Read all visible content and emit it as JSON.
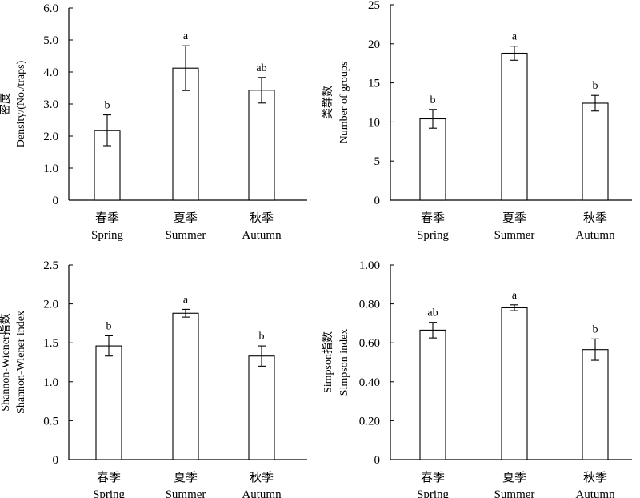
{
  "chart_data": [
    {
      "type": "bar",
      "categories": [
        "春季",
        "夏季",
        "秋季"
      ],
      "categories_en": [
        "Spring",
        "Summer",
        "Autumn"
      ],
      "ylabel_cn": "密度",
      "ylabel_en": "Density/(No./traps)",
      "ylim": [
        0,
        6
      ],
      "yticks": [
        "0",
        "1.0",
        "2.0",
        "3.0",
        "4.0",
        "5.0",
        "6.0"
      ],
      "tick_values": [
        0,
        1,
        2,
        3,
        4,
        5,
        6
      ],
      "values": [
        2.18,
        4.12,
        3.43
      ],
      "errors": [
        0.48,
        0.7,
        0.4
      ],
      "letters": [
        "b",
        "a",
        "ab"
      ]
    },
    {
      "type": "bar",
      "categories": [
        "春季",
        "夏季",
        "秋季"
      ],
      "categories_en": [
        "Spring",
        "Summer",
        "Autumn"
      ],
      "ylabel_cn": "类群数",
      "ylabel_en": "Number of groups",
      "ylim": [
        0,
        25
      ],
      "yticks": [
        "0",
        "5",
        "10",
        "15",
        "20",
        "25"
      ],
      "tick_values": [
        0,
        5,
        10,
        15,
        20,
        25
      ],
      "values": [
        10.4,
        18.8,
        12.4
      ],
      "errors": [
        1.2,
        0.9,
        1.0
      ],
      "letters": [
        "b",
        "a",
        "b"
      ]
    },
    {
      "type": "bar",
      "categories": [
        "春季",
        "夏季",
        "秋季"
      ],
      "categories_en": [
        "Spring",
        "Summer",
        "Autumn"
      ],
      "ylabel_cn": "Shannon-Wiener指数",
      "ylabel_en": "Shannon-Wiener index",
      "ylim": [
        0,
        2.5
      ],
      "yticks": [
        "0",
        "0.5",
        "1.0",
        "1.5",
        "2.0",
        "2.5"
      ],
      "tick_values": [
        0,
        0.5,
        1,
        1.5,
        2,
        2.5
      ],
      "values": [
        1.46,
        1.88,
        1.33
      ],
      "errors": [
        0.13,
        0.05,
        0.13
      ],
      "letters": [
        "b",
        "a",
        "b"
      ]
    },
    {
      "type": "bar",
      "categories": [
        "春季",
        "夏季",
        "秋季"
      ],
      "categories_en": [
        "Spring",
        "Summer",
        "Autumn"
      ],
      "ylabel_cn": "Simpson指数",
      "ylabel_en": "Simpson index",
      "ylim": [
        0,
        1
      ],
      "yticks": [
        "0",
        "0.20",
        "0.40",
        "0.60",
        "0.80",
        "1.00"
      ],
      "tick_values": [
        0,
        0.2,
        0.4,
        0.6,
        0.8,
        1.0
      ],
      "values": [
        0.665,
        0.78,
        0.565
      ],
      "errors": [
        0.04,
        0.015,
        0.055
      ],
      "letters": [
        "ab",
        "a",
        "b"
      ]
    }
  ]
}
